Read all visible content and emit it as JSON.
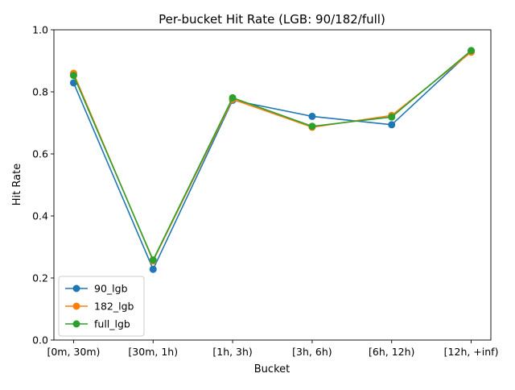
{
  "chart_data": {
    "type": "line",
    "title": "Per-bucket Hit Rate (LGB: 90/182/full)",
    "xlabel": "Bucket",
    "ylabel": "Hit Rate",
    "categories": [
      "[0m, 30m)",
      "[30m, 1h)",
      "[1h, 3h)",
      "[3h, 6h)",
      "[6h, 12h)",
      "[12h, +inf)"
    ],
    "ylim": [
      0,
      1.0
    ],
    "yticks": [
      "0.0",
      "0.2",
      "0.4",
      "0.6",
      "0.8",
      "1.0"
    ],
    "grid": false,
    "legend_position": "lower-left",
    "series": [
      {
        "name": "90_lgb",
        "color": "#1f77b4",
        "values": [
          0.829,
          0.228,
          0.773,
          0.721,
          0.694,
          0.932
        ]
      },
      {
        "name": "182_lgb",
        "color": "#ff7f0e",
        "values": [
          0.86,
          0.255,
          0.776,
          0.686,
          0.724,
          0.928
        ]
      },
      {
        "name": "full_lgb",
        "color": "#2ca02c",
        "values": [
          0.853,
          0.258,
          0.781,
          0.689,
          0.719,
          0.933
        ]
      }
    ]
  }
}
